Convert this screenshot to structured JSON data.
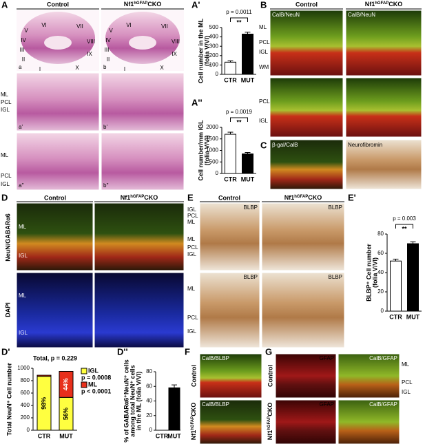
{
  "control": "Control",
  "mutant": {
    "base": "Nf1",
    "sup": "hGFAP",
    "suffix": "CKO"
  },
  "panels": {
    "A": {
      "label": "A",
      "lobules": [
        "VI",
        "VII",
        "V",
        "IV",
        "III",
        "II",
        "VIII",
        "IX",
        "X",
        "I"
      ],
      "images": [
        "a",
        "b",
        "a'",
        "b'",
        "a''",
        "b''"
      ],
      "layers": [
        "ML",
        "PCL",
        "IGL"
      ]
    },
    "B": {
      "label": "B",
      "stain": "CalB/NeuN",
      "layers": [
        "ML",
        "PCL",
        "IGL",
        "WM"
      ]
    },
    "C": {
      "label": "C",
      "stain_left": "β-gal/CalB",
      "stain_right": "Neurofibromin"
    },
    "D": {
      "label": "D",
      "stain": "NeuN/GABARα6",
      "dapi": "DAPI",
      "layers": [
        "ML",
        "IGL"
      ]
    },
    "E": {
      "label": "E",
      "stain": "BLBP",
      "layers": [
        "IGL",
        "PCL",
        "ML"
      ]
    },
    "F": {
      "label": "F",
      "stain": "CalB/BLBP"
    },
    "G": {
      "label": "G",
      "stain": "CalB/GFAP",
      "gfap": "GFAP",
      "layers": [
        "ML",
        "PCL",
        "IGL"
      ]
    }
  },
  "chart_data": [
    {
      "type": "bar",
      "panel": "A'",
      "ylabel": [
        "Cell number in the ML",
        "(folia V/VI)"
      ],
      "categories": [
        "CTR",
        "MUT"
      ],
      "values": [
        130,
        430
      ],
      "errors": [
        15,
        20
      ],
      "colors": [
        "#ffffff",
        "#000000"
      ],
      "ylim": [
        0,
        500
      ],
      "yticks": [
        0,
        100,
        200,
        300,
        400,
        500
      ],
      "annotations": [
        "p = 0.0011",
        "**"
      ]
    },
    {
      "type": "bar",
      "panel": "A''",
      "ylabel": [
        "Cell number/mm IGL",
        "(folia V/VI)"
      ],
      "categories": [
        "CTR",
        "MUT"
      ],
      "values": [
        1700,
        850
      ],
      "errors": [
        90,
        60
      ],
      "colors": [
        "#ffffff",
        "#000000"
      ],
      "ylim": [
        0,
        2000
      ],
      "yticks": [
        0,
        500,
        1000,
        1500,
        2000
      ],
      "annotations": [
        "p = 0.0019",
        "**"
      ]
    },
    {
      "type": "bar",
      "panel": "E'",
      "ylabel": [
        "BLBP⁺ Cell number",
        "(folia V/VI)"
      ],
      "categories": [
        "CTR",
        "MUT"
      ],
      "values": [
        52,
        70
      ],
      "errors": [
        2,
        2
      ],
      "colors": [
        "#ffffff",
        "#000000"
      ],
      "ylim": [
        0,
        80
      ],
      "yticks": [
        0,
        20,
        40,
        60,
        80
      ],
      "annotations": [
        "p = 0.003",
        "**"
      ]
    },
    {
      "type": "stacked_bar",
      "panel": "D'",
      "ylabel": [
        "Total NeuN⁺ Cell number"
      ],
      "categories": [
        "CTR",
        "MUT"
      ],
      "series": [
        {
          "name": "IGL",
          "note": "p = 0.0008",
          "color": "#ffff40",
          "values": [
            870,
            530
          ]
        },
        {
          "name": "ML",
          "note": "p < 0.0001",
          "color": "#e8301c",
          "values": [
            18,
            420
          ]
        }
      ],
      "ylim": [
        0,
        1000
      ],
      "yticks": [
        0,
        200,
        400,
        600,
        800,
        1000
      ],
      "annotations": [
        "Total, p = 0.229",
        "98%",
        "56%",
        "44%"
      ]
    },
    {
      "type": "bar",
      "panel": "D''",
      "ylabel": [
        "% of GABARα6⁺NeuN⁺ cells",
        "among total NeuN⁺ cells",
        "in the ML (folia V/VI)"
      ],
      "categories": [
        "CTR",
        "MUT"
      ],
      "values": [
        0,
        58
      ],
      "errors": [
        0,
        4
      ],
      "colors": [
        "#000000",
        "#000000"
      ],
      "ylim": [
        0,
        80
      ],
      "yticks": [
        0,
        20,
        40,
        60,
        80
      ]
    }
  ]
}
